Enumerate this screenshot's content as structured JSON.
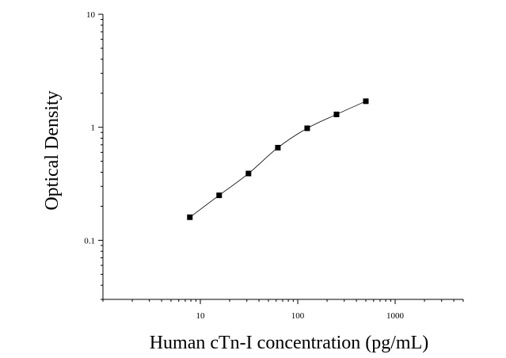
{
  "chart_data": {
    "type": "scatter",
    "title": "",
    "xlabel": "Human cTn-I concentration (pg/mL)",
    "ylabel": "Optical Density",
    "xscale": "log",
    "yscale": "log",
    "xlim": [
      1,
      5000
    ],
    "ylim": [
      0.03,
      10
    ],
    "x_tick_labels": [
      "10",
      "100",
      "1000"
    ],
    "y_tick_labels": [
      "10",
      "1",
      "0.1"
    ],
    "grid": false,
    "legend": "none",
    "series": [
      {
        "x": [
          7.8,
          15.6,
          31.2,
          62.5,
          125,
          250,
          500
        ],
        "y": [
          0.16,
          0.25,
          0.39,
          0.66,
          0.98,
          1.3,
          1.7
        ],
        "marker": "square",
        "fit_line": true
      }
    ],
    "colors": {
      "marker": "#000000",
      "line": "#000000",
      "axis": "#000000"
    }
  }
}
